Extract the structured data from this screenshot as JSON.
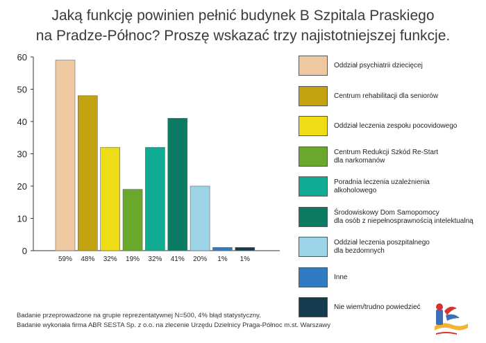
{
  "title_line1": "Jaką funkcję powinien pełnić budynek B Szpitala Praskiego",
  "title_line2": "na Pradze-Północ? Proszę wskazać trzy najistotniejszej funkcje.",
  "footnote_line1": "Badanie przeprowadzone na grupie reprezentatywnej N=500, 4% błąd statystyczny.",
  "footnote_line2": "Badanie wykonała firma ABR SESTA Sp. z o.o. na zlecenie Urzędu Dzielnicy Praga-Północ m.st. Warszawy",
  "logo_icon": "praga-polnoc-district-logo",
  "chart_data": {
    "type": "bar",
    "ylim": [
      0,
      60
    ],
    "yticks": [
      0,
      10,
      20,
      30,
      40,
      50,
      60
    ],
    "categories": [
      "Oddział psychiatrii dziecięcej",
      "Centrum rehabilitacji dla seniorów",
      "Oddział leczenia zespołu pocovidowego",
      "Centrum Redukcji Szkód Re-Start\ndla narkomanów",
      "Poradnia leczenia uzależnienia\nalkoholowego",
      "Środowiskowy Dom Samopomocy\ndla osób z niepełnosprawnością intelektualną",
      "Oddział leczenia poszpitalnego\ndla bezdomnych",
      "Inne",
      "Nie wiem/trudno powiedzieć"
    ],
    "values": [
      59,
      48,
      32,
      19,
      32,
      41,
      20,
      1,
      1
    ],
    "data_labels": [
      "59%",
      "48%",
      "32%",
      "19%",
      "32%",
      "41%",
      "20%",
      "1%",
      "1%"
    ],
    "colors": [
      "#efc7a0",
      "#c2a20e",
      "#eedc17",
      "#69a82b",
      "#0fab92",
      "#0b7c63",
      "#9dd3e7",
      "#2f7cc2",
      "#153c4e"
    ],
    "grid": false,
    "legend_position": "right"
  }
}
